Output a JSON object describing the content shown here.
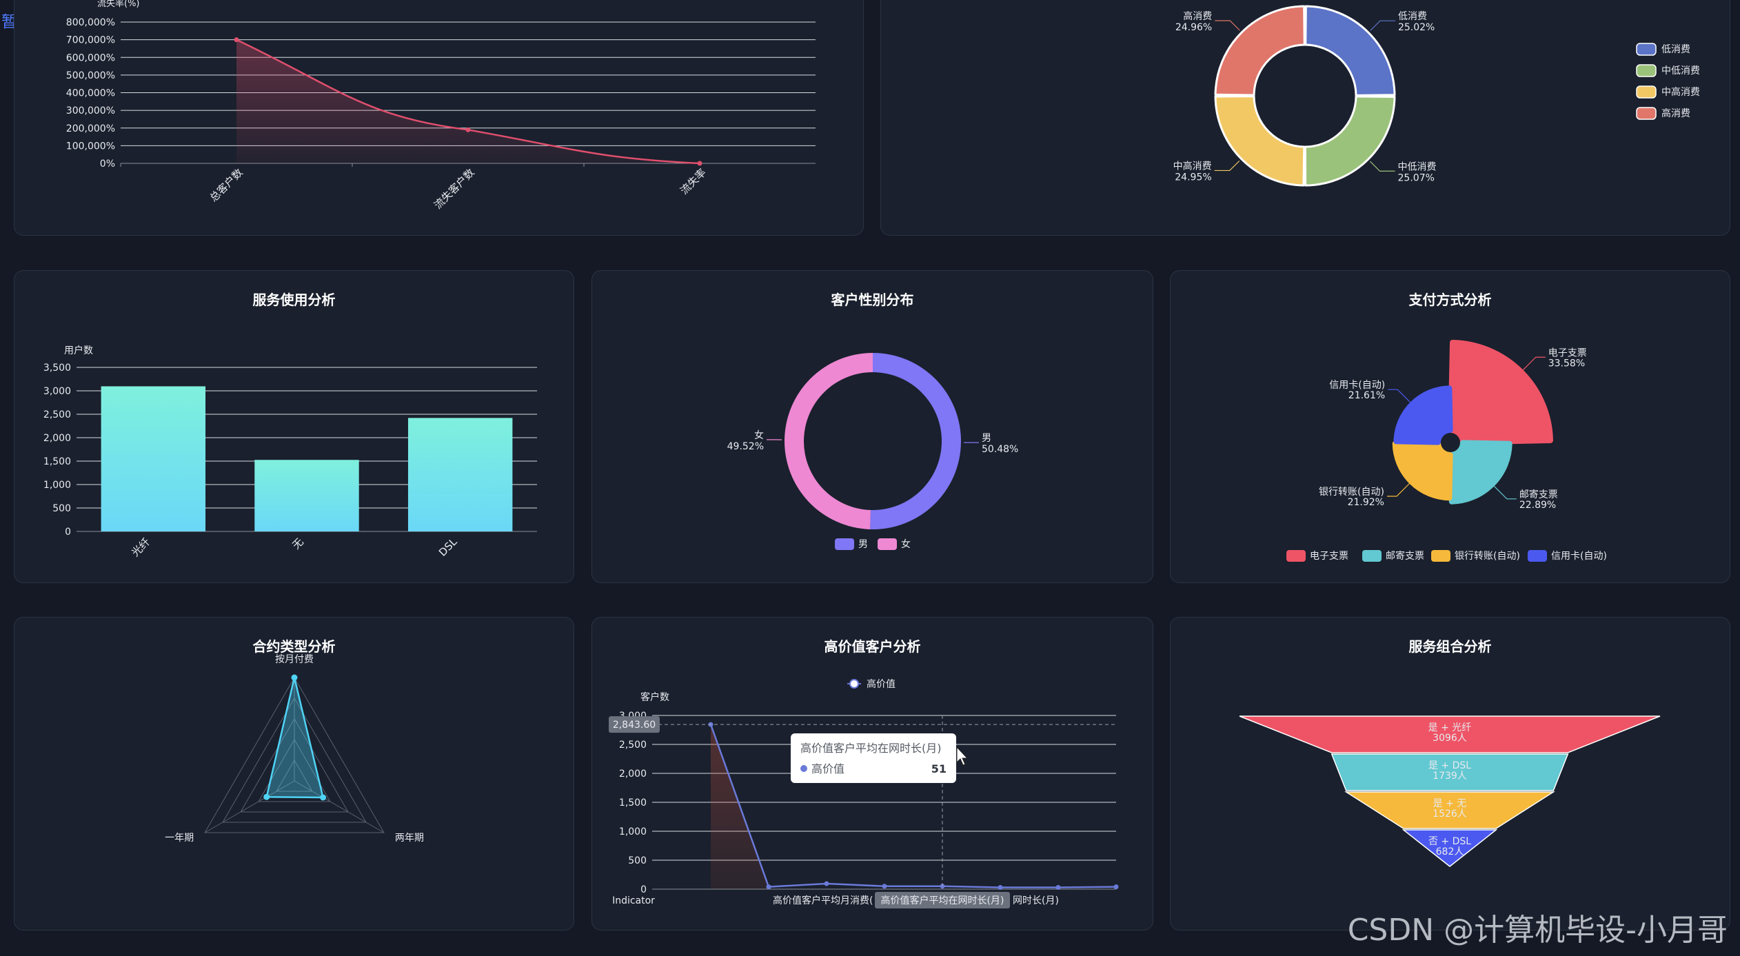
{
  "pause_label": "暂停",
  "watermark": "CSDN @计算机毕设-小月哥",
  "colors": {
    "background": "#141925",
    "panel": "#1a202d",
    "churn_line": "#e04f6d",
    "bar_top": "#7ff0dd",
    "bar_bottom": "#6ad8f7",
    "radar": "#4fd3f5",
    "high_value": "#6a7ad9"
  },
  "panels": {
    "service_usage": "服务使用分析",
    "gender": "客户性别分布",
    "payment": "支付方式分析",
    "contract": "合约类型分析",
    "high_value": "高价值客户分析",
    "combo": "服务组合分析"
  },
  "chart_data": [
    {
      "id": "churn",
      "type": "line",
      "ylabel": "流失率(%)",
      "categories": [
        "总客户数",
        "流失客户数",
        "流失率"
      ],
      "values": [
        700000,
        190000,
        0
      ],
      "ylim": [
        0,
        800000
      ],
      "yticks": [
        "0%",
        "100,000%",
        "200,000%",
        "300,000%",
        "400,000%",
        "500,000%",
        "600,000%",
        "700,000%",
        "800,000%"
      ],
      "area": true,
      "smooth": true
    },
    {
      "id": "consumption",
      "type": "pie",
      "donut": true,
      "slices": [
        {
          "label": "低消费",
          "pct": "25.02%",
          "value": 25.02,
          "color": "#5b74c8"
        },
        {
          "label": "中低消费",
          "pct": "25.07%",
          "value": 25.07,
          "color": "#9bc27a"
        },
        {
          "label": "中高消费",
          "pct": "24.95%",
          "value": 24.95,
          "color": "#f2c865"
        },
        {
          "label": "高消费",
          "pct": "24.96%",
          "value": 24.96,
          "color": "#e0766a"
        }
      ],
      "legend": [
        "低消费",
        "中低消费",
        "中高消费",
        "高消费"
      ],
      "legend_position": "right"
    },
    {
      "id": "service_usage",
      "type": "bar",
      "ylabel": "用户数",
      "categories": [
        "光纤",
        "无",
        "DSL"
      ],
      "values": [
        3096,
        1526,
        2421
      ],
      "ylim": [
        0,
        3500
      ],
      "yticks": [
        "0",
        "500",
        "1,000",
        "1,500",
        "2,000",
        "2,500",
        "3,000",
        "3,500"
      ],
      "grid": true
    },
    {
      "id": "gender",
      "type": "pie",
      "donut": true,
      "slices": [
        {
          "label": "男",
          "pct": "50.48%",
          "value": 50.48,
          "color": "#7f77f5"
        },
        {
          "label": "女",
          "pct": "49.52%",
          "value": 49.52,
          "color": "#ee88d3"
        }
      ],
      "legend": [
        "男",
        "女"
      ],
      "legend_position": "bottom"
    },
    {
      "id": "payment",
      "type": "pie",
      "rose": true,
      "slices": [
        {
          "label": "电子支票",
          "pct": "33.58%",
          "value": 33.58,
          "color": "#ee5466"
        },
        {
          "label": "邮寄支票",
          "pct": "22.89%",
          "value": 22.89,
          "color": "#62c8d1"
        },
        {
          "label": "银行转账(自动)",
          "pct": "21.92%",
          "value": 21.92,
          "color": "#f6b93b"
        },
        {
          "label": "信用卡(自动)",
          "pct": "21.61%",
          "value": 21.61,
          "color": "#4b59f0"
        }
      ],
      "legend": [
        "电子支票",
        "邮寄支票",
        "银行转账(自动)",
        "信用卡(自动)"
      ],
      "legend_position": "bottom"
    },
    {
      "id": "contract",
      "type": "radar",
      "indicators": [
        "按月付费",
        "两年期",
        "一年期"
      ],
      "values": [
        1,
        0.32,
        0.31
      ]
    },
    {
      "id": "high_value",
      "type": "line",
      "legend": [
        "高价值"
      ],
      "ylabel": "客户数",
      "ylim": [
        0,
        3000
      ],
      "yticks": [
        "0",
        "500",
        "1,000",
        "1,500",
        "2,000",
        "2,500",
        "3,000"
      ],
      "series": [
        {
          "name": "高价值",
          "values": [
            2843.6,
            40,
            95,
            51,
            51,
            30,
            30,
            40
          ]
        }
      ],
      "x_labels": [
        "Indicator",
        "高价值客户平均月消费(",
        "网时长(月)"
      ],
      "axis_pointer_y": "2,843.60",
      "axis_pointer_x": "高价值客户平均在网时长(月)",
      "tooltip": {
        "title": "高价值客户平均在网时长(月)",
        "series": "高价值",
        "value": "51"
      }
    },
    {
      "id": "combo",
      "type": "funnel",
      "stages": [
        {
          "name": "是 + 光纤",
          "label": "3096人",
          "value": 3096,
          "color": "#ee5466"
        },
        {
          "name": "是 + DSL",
          "label": "1739人",
          "value": 1739,
          "color": "#62c8d1"
        },
        {
          "name": "是 + 无",
          "label": "1526人",
          "value": 1526,
          "color": "#f6b93b"
        },
        {
          "name": "否 + DSL",
          "label": "682人",
          "value": 682,
          "color": "#4b59f0"
        }
      ]
    }
  ]
}
